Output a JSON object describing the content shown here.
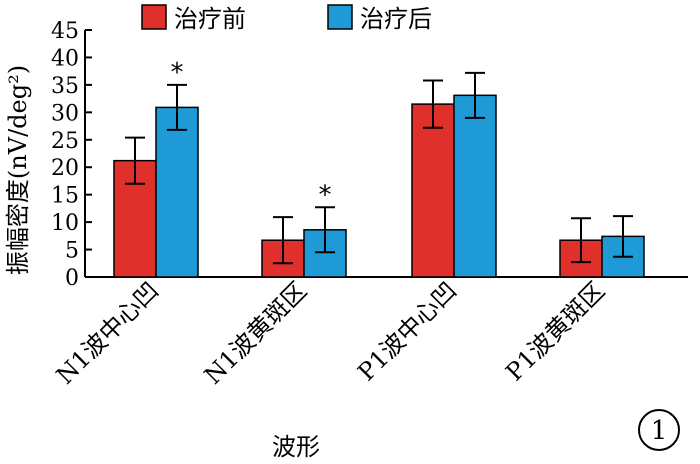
{
  "chart_data": {
    "type": "bar",
    "title": "",
    "xlabel": "波形",
    "ylabel": "振幅密度(nV/deg²)",
    "ylim": [
      0,
      45
    ],
    "yticks": [
      0,
      5,
      10,
      15,
      20,
      25,
      30,
      35,
      40,
      45
    ],
    "categories": [
      "N1波中心凹",
      "N1波黄斑区",
      "P1波中心凹",
      "P1波黄斑区"
    ],
    "series": [
      {
        "name": "治疗前",
        "color": "#e0302b",
        "values": [
          21.2,
          6.7,
          31.5,
          6.7
        ],
        "errors": [
          4.2,
          4.2,
          4.3,
          4.0
        ]
      },
      {
        "name": "治疗后",
        "color": "#1e9ad6",
        "values": [
          30.9,
          8.6,
          33.1,
          7.4
        ],
        "errors": [
          4.1,
          4.1,
          4.1,
          3.7
        ]
      }
    ],
    "significance": [
      "*",
      "*",
      "",
      ""
    ],
    "legend_position": "top",
    "grid": false,
    "panel_label": "1"
  }
}
